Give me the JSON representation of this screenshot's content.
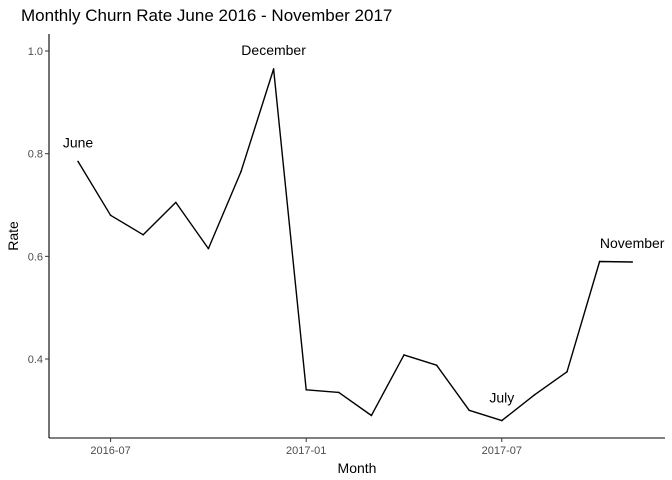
{
  "chart_data": {
    "type": "line",
    "title": "Monthly Churn Rate June 2016 - November 2017",
    "xlabel": "Month",
    "ylabel": "Rate",
    "x": [
      "2016-06",
      "2016-07",
      "2016-08",
      "2016-09",
      "2016-10",
      "2016-11",
      "2016-12",
      "2017-01",
      "2017-02",
      "2017-03",
      "2017-04",
      "2017-05",
      "2017-06",
      "2017-07",
      "2017-08",
      "2017-09",
      "2017-10",
      "2017-11"
    ],
    "values": [
      0.785,
      0.68,
      0.642,
      0.705,
      0.615,
      0.765,
      0.965,
      0.34,
      0.335,
      0.29,
      0.408,
      0.388,
      0.3,
      0.28,
      0.33,
      0.375,
      0.59,
      0.589
    ],
    "ylim": [
      0.25,
      1.035
    ],
    "y_ticks": [
      "0.4",
      "0.6",
      "0.8",
      "1.0"
    ],
    "x_ticks": [
      "2016-07",
      "2017-01",
      "2017-07"
    ],
    "annotations": [
      {
        "label": "June",
        "x": "2016-06",
        "y": 0.785
      },
      {
        "label": "December",
        "x": "2016-12",
        "y": 0.965
      },
      {
        "label": "July",
        "x": "2017-07",
        "y": 0.28
      },
      {
        "label": "November",
        "x": "2017-11",
        "y": 0.589
      }
    ],
    "grid": false,
    "line_color": "#000000"
  }
}
